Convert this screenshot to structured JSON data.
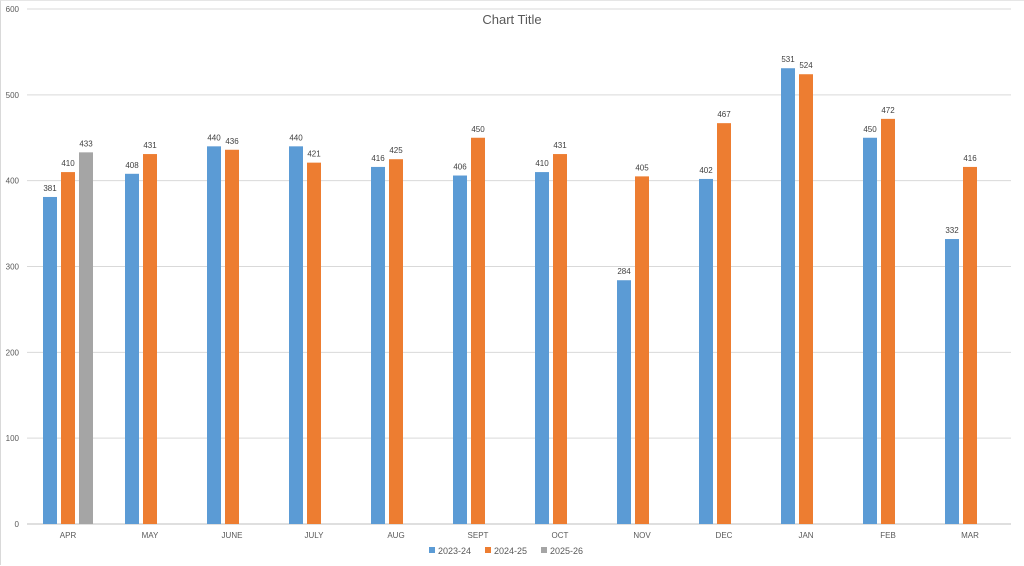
{
  "chart_data": {
    "type": "bar",
    "title": "Chart Title",
    "xlabel": "",
    "ylabel": "",
    "ylim": [
      0,
      600
    ],
    "yticks": [
      "0",
      "100",
      "200",
      "300",
      "400",
      "500",
      "600"
    ],
    "grid": true,
    "legend_position": "bottom",
    "categories": [
      "APR",
      "MAY",
      "JUNE",
      "JULY",
      "AUG",
      "SEPT",
      "OCT",
      "NOV",
      "DEC",
      "JAN",
      "FEB",
      "MAR"
    ],
    "series": [
      {
        "name": "2023-24",
        "color": "#5B9BD5",
        "values": [
          381,
          408,
          440,
          440,
          416,
          406,
          410,
          284,
          402,
          531,
          450,
          332
        ]
      },
      {
        "name": "2024-25",
        "color": "#ED7D31",
        "values": [
          410,
          431,
          436,
          421,
          425,
          450,
          431,
          405,
          467,
          524,
          472,
          416
        ]
      },
      {
        "name": "2025-26",
        "color": "#A5A5A5",
        "values": [
          433,
          null,
          null,
          null,
          null,
          null,
          null,
          null,
          null,
          null,
          null,
          null
        ]
      }
    ]
  }
}
